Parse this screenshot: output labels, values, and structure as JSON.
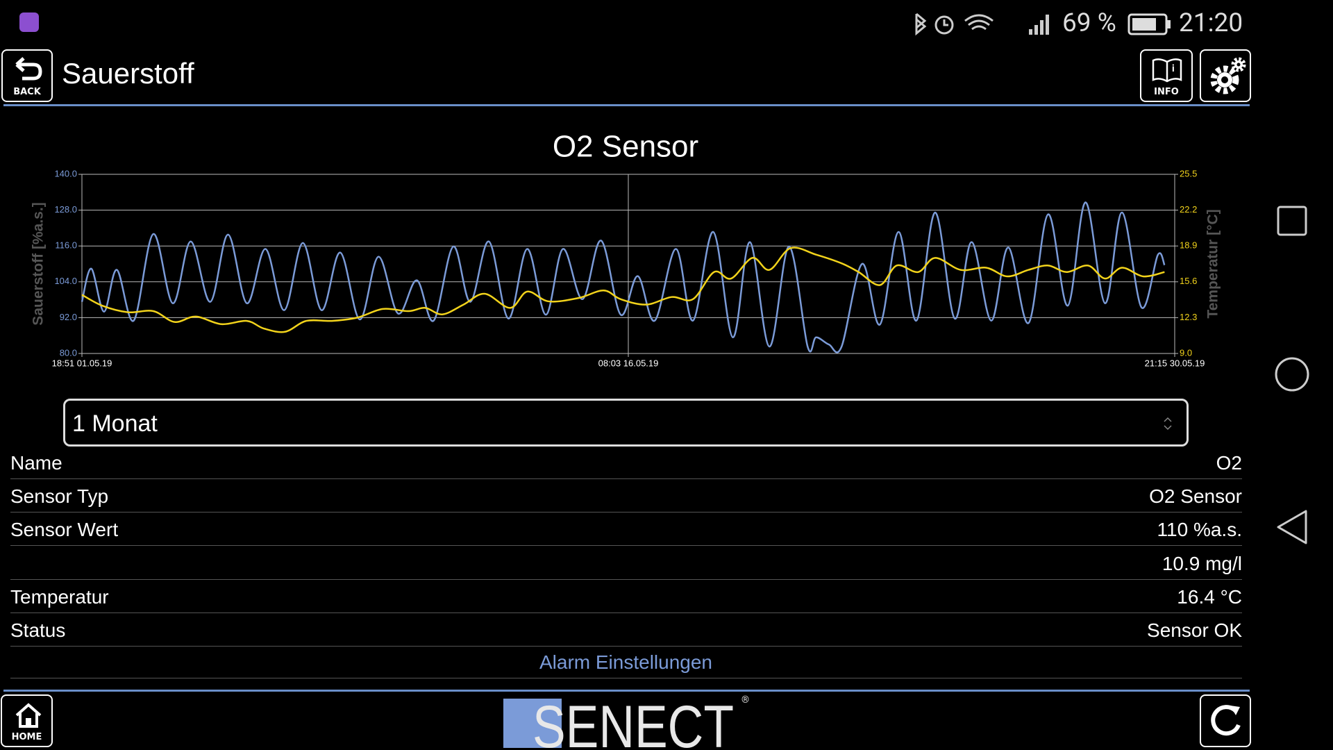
{
  "status_bar": {
    "battery": "69 %",
    "time": "21:20"
  },
  "header": {
    "back": "BACK",
    "title": "Sauerstoff",
    "info": "INFO"
  },
  "chart_data": {
    "type": "line",
    "title": "O2 Sensor",
    "ylabel": "Sauerstoff [%a.s.]",
    "y2label": "Temperatur [°C]",
    "xlim": [
      0,
      698.4
    ],
    "xticks": [
      {
        "value": 0,
        "label": "18:51 01.05.19"
      },
      {
        "value": 349.2,
        "label": "08:03 16.05.19"
      },
      {
        "value": 698.4,
        "label": "21:15 30.05.19"
      }
    ],
    "ylim": [
      80,
      140
    ],
    "yticks": [
      {
        "value": 80,
        "label": "80.0"
      },
      {
        "value": 92,
        "label": "92.0"
      },
      {
        "value": 104,
        "label": "104.0"
      },
      {
        "value": 116,
        "label": "116.0"
      },
      {
        "value": 128,
        "label": "128.0"
      },
      {
        "value": 140,
        "label": "140.0"
      }
    ],
    "y2lim": [
      9,
      25.5
    ],
    "y2ticks": [
      {
        "value": 9,
        "label": "9.0"
      },
      12.3,
      15.6,
      18.9,
      22.2,
      25.5
    ],
    "grid": true,
    "series": [
      {
        "color": "#7b9bd8",
        "axis": "y",
        "x": [
          0,
          6.0,
          14.1,
          22.3,
          33.1,
          45.6,
          58.1,
          69.5,
          82.0,
          93.4,
          105.4,
          117.3,
          129.3,
          141.2,
          153.2,
          165.1,
          177.6,
          189.5,
          202.0,
          214.0,
          224.8,
          237.3,
          248.2,
          260.1,
          272.6,
          284.6,
          296.5,
          307.4,
          319.9,
          331.8,
          344.3,
          355.2,
          366.1,
          379.6,
          390.5,
          403.5,
          416.0,
          426.9,
          439.4,
          451.9,
          463.8,
          469.2,
          477.4,
          485.5,
          498.6,
          510.0,
          521.9,
          533.3,
          545.3,
          557.8,
          568.6,
          581.1,
          592.0,
          605.0,
          617.5,
          630.0,
          641.4,
          653.9,
          664.7,
          677.2,
          687.6,
          691.9
        ],
        "values": [
          97.3,
          108.4,
          94,
          108,
          91,
          120,
          96.8,
          117.5,
          97.3,
          119.8,
          96.8,
          115,
          94.5,
          117,
          94.5,
          113.8,
          91.4,
          112.4,
          93.4,
          104.5,
          91,
          115.8,
          97.3,
          117.5,
          91.7,
          115,
          93,
          115,
          98.2,
          117.8,
          93,
          105.9,
          91,
          115,
          91,
          120.7,
          85.4,
          117.3,
          82.3,
          115.8,
          82.3,
          85.4,
          83,
          82.3,
          110,
          89.7,
          120.7,
          91,
          127.2,
          91.7,
          117.3,
          91,
          115.5,
          90.2,
          126.6,
          96,
          130.6,
          96.8,
          127.2,
          95.4,
          113,
          109.6
        ]
      },
      {
        "color": "#f2d31b",
        "axis": "y2",
        "x": [
          0,
          13.0,
          29.3,
          45.6,
          59.2,
          72.8,
          89.1,
          105.4,
          116.2,
          129.8,
          143.4,
          159.7,
          176.0,
          192.3,
          208.6,
          219.4,
          230.3,
          243.9,
          257.4,
          273.7,
          284.6,
          298.2,
          317.2,
          333.4,
          344.3,
          360.6,
          376.9,
          390.5,
          404.0,
          414.9,
          428.5,
          439.4,
          452.9,
          469.2,
          485.5,
          496.4,
          510.0,
          520.8,
          534.4,
          545.3,
          561.6,
          577.9,
          591.4,
          605.0,
          617.5,
          629.4,
          643.0,
          653.9,
          664.7,
          678.3,
          691.9
        ],
        "values": [
          14.4,
          13.4,
          12.8,
          12.9,
          11.9,
          12.4,
          11.7,
          12.0,
          11.3,
          11.0,
          12.0,
          12.0,
          12.3,
          13.1,
          12.9,
          13.2,
          12.6,
          13.5,
          14.5,
          13.2,
          14.7,
          13.8,
          14.1,
          14.8,
          14.0,
          13.5,
          14.2,
          14.0,
          16.5,
          15.9,
          17.8,
          16.7,
          18.7,
          18.1,
          17.3,
          16.5,
          15.3,
          17.1,
          16.5,
          17.8,
          16.7,
          16.9,
          16.1,
          16.7,
          17.1,
          16.5,
          17.1,
          15.9,
          16.9,
          16.1,
          16.5
        ]
      }
    ]
  },
  "dropdown": {
    "selected": "1 Monat"
  },
  "table": {
    "rows": [
      {
        "label": "Name",
        "value": "O2"
      },
      {
        "label": "Sensor Typ",
        "value": "O2 Sensor"
      },
      {
        "label": "Sensor Wert",
        "value": "110 %a.s."
      },
      {
        "value": "10.9 mg/l"
      },
      {
        "label": "Temperatur",
        "value": "16.4 °C"
      },
      {
        "label": "Status",
        "value": "Sensor OK"
      }
    ]
  },
  "link": "Alarm Einstellungen",
  "footer": {
    "home": "HOME",
    "logo": "SENECT",
    "registered": "®"
  }
}
